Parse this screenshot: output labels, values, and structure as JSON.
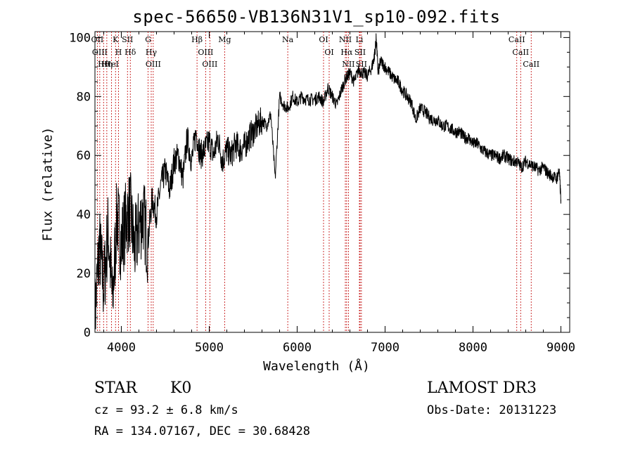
{
  "chart_data": {
    "type": "line",
    "title": "spec-56650-VB136N31V1_sp10-092.fits",
    "xlabel": "Wavelength (Å)",
    "ylabel": "Flux (relative)",
    "xlim": [
      3700,
      9100
    ],
    "ylim": [
      0,
      102
    ],
    "xticks": [
      4000,
      5000,
      6000,
      7000,
      8000,
      9000
    ],
    "yticks": [
      0,
      20,
      40,
      60,
      80,
      100
    ],
    "series": [
      {
        "name": "spectrum",
        "x": [
          3700,
          3750,
          3800,
          3850,
          3900,
          3950,
          4000,
          4050,
          4100,
          4150,
          4200,
          4250,
          4300,
          4350,
          4400,
          4450,
          4500,
          4550,
          4600,
          4650,
          4700,
          4750,
          4800,
          4850,
          4900,
          4950,
          5000,
          5050,
          5100,
          5150,
          5200,
          5250,
          5300,
          5350,
          5400,
          5450,
          5500,
          5550,
          5600,
          5650,
          5700,
          5750,
          5800,
          5850,
          5900,
          5950,
          6000,
          6050,
          6100,
          6150,
          6200,
          6250,
          6300,
          6350,
          6400,
          6450,
          6500,
          6550,
          6600,
          6650,
          6700,
          6750,
          6800,
          6850,
          6880,
          6900,
          6920,
          6950,
          7000,
          7050,
          7100,
          7150,
          7200,
          7250,
          7300,
          7350,
          7400,
          7450,
          7500,
          7550,
          7600,
          7650,
          7700,
          7750,
          7800,
          7850,
          7900,
          7950,
          8000,
          8050,
          8100,
          8150,
          8200,
          8250,
          8300,
          8350,
          8400,
          8450,
          8500,
          8550,
          8600,
          8650,
          8700,
          8750,
          8800,
          8850,
          8900,
          8950,
          8980,
          9000
        ],
        "y": [
          5,
          30,
          15,
          35,
          10,
          40,
          30,
          38,
          42,
          28,
          36,
          40,
          30,
          45,
          40,
          50,
          55,
          48,
          58,
          60,
          52,
          66,
          58,
          68,
          60,
          62,
          65,
          60,
          66,
          58,
          62,
          60,
          64,
          62,
          63,
          66,
          68,
          70,
          72,
          70,
          74,
          52,
          80,
          77,
          76,
          80,
          78,
          80,
          79,
          79,
          79,
          80,
          78,
          83,
          80,
          77,
          82,
          86,
          88,
          85,
          89,
          88,
          87,
          90,
          94,
          100,
          88,
          92,
          90,
          88,
          86,
          85,
          82,
          80,
          78,
          72,
          76,
          75,
          73,
          72,
          72,
          70,
          70,
          69,
          68,
          68,
          66,
          66,
          64,
          64,
          62,
          61,
          60,
          60,
          59,
          60,
          59,
          58,
          58,
          56,
          58,
          57,
          56,
          55,
          56,
          54,
          53,
          52,
          55,
          45
        ]
      }
    ],
    "lines": [
      {
        "label": "Hθ",
        "x": 3798
      },
      {
        "label": "OII",
        "x": 3727
      },
      {
        "label": "OIII",
        "x": 3755
      },
      {
        "label": "Hη",
        "x": 3835
      },
      {
        "label": "HeI",
        "x": 3889
      },
      {
        "label": "K",
        "x": 3934
      },
      {
        "label": "H",
        "x": 3968
      },
      {
        "label": "SII",
        "x": 4070
      },
      {
        "label": "Hδ",
        "x": 4102
      },
      {
        "label": "Hγ",
        "x": 4340
      },
      {
        "label": "G",
        "x": 4305
      },
      {
        "label": "OIII",
        "x": 4363
      },
      {
        "label": "Hβ",
        "x": 4861
      },
      {
        "label": "OIII",
        "x": 4959
      },
      {
        "label": "OIII",
        "x": 5007
      },
      {
        "label": "Mg",
        "x": 5175
      },
      {
        "label": "Na",
        "x": 5893
      },
      {
        "label": "OI",
        "x": 6300
      },
      {
        "label": "OI",
        "x": 6364
      },
      {
        "label": "NII",
        "x": 6548
      },
      {
        "label": "Hα",
        "x": 6563
      },
      {
        "label": "NII",
        "x": 6583
      },
      {
        "label": "Li",
        "x": 6708
      },
      {
        "label": "SII",
        "x": 6716
      },
      {
        "label": "SII",
        "x": 6731
      },
      {
        "label": "CaII",
        "x": 8498
      },
      {
        "label": "CaII",
        "x": 8542
      },
      {
        "label": "CaII",
        "x": 8662
      }
    ]
  },
  "info": {
    "class": "STAR",
    "subclass": "K0",
    "survey": "LAMOST DR3",
    "cz": "cz = 93.2 ± 6.8 km/s",
    "obs_date": "Obs-Date: 20131223",
    "coords": "RA = 134.07167, DEC =  30.68428"
  }
}
